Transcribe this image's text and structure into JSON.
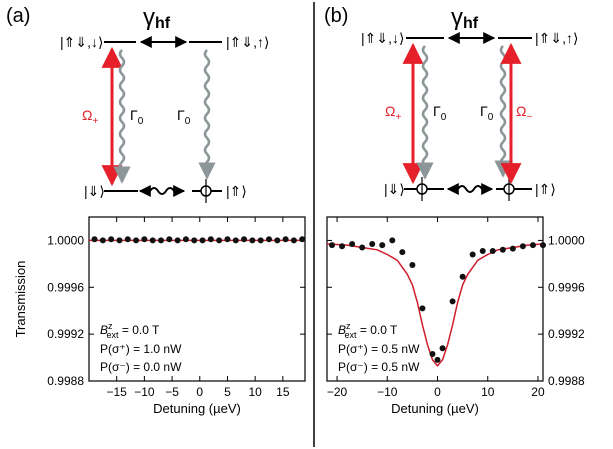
{
  "panels": [
    {
      "label": "(a)",
      "coupling": "γ",
      "coupling_sub": "hf",
      "states": {
        "excited_left": "|⇑⇓,↓⟩",
        "excited_right": "|⇑⇓,↑⟩",
        "ground_left": "|⇓⟩",
        "ground_right": "|⇑⟩"
      },
      "rabi": {
        "symbol": "Ω",
        "sub": "+"
      },
      "decay_left": {
        "symbol": "Γ",
        "sub": "0"
      },
      "decay_right": {
        "symbol": "Γ",
        "sub": "0"
      },
      "annotations": [
        {
          "main": "B",
          "sup": "z",
          "sub": "ext",
          "rest": " = 0.0 T"
        },
        {
          "text": "P(σ⁺) = 1.0 nW"
        },
        {
          "text": "P(σ⁻) = 0.0 nW"
        }
      ]
    },
    {
      "label": "(b)",
      "coupling": "γ",
      "coupling_sub": "hf",
      "states": {
        "excited_left": "|⇑⇓,↓⟩",
        "excited_right": "|⇑⇓,↑⟩",
        "ground_left": "|⇓⟩",
        "ground_right": "|⇑⟩"
      },
      "rabi_plus": {
        "symbol": "Ω",
        "sub": "+"
      },
      "rabi_minus": {
        "symbol": "Ω",
        "sub": "−"
      },
      "decay_left": {
        "symbol": "Γ",
        "sub": "0"
      },
      "decay_right": {
        "symbol": "Γ",
        "sub": "0"
      },
      "annotations": [
        {
          "main": "B",
          "sup": "z",
          "sub": "ext",
          "rest": " = 0.0 T"
        },
        {
          "text": "P(σ⁺) = 0.5 nW"
        },
        {
          "text": "P(σ⁻) = 0.5 nW"
        }
      ]
    }
  ],
  "colors": {
    "laser": "#e5202a",
    "decay": "#8c9699",
    "fit": "#d01c2c",
    "points": "#111111"
  },
  "chart_data": [
    {
      "type": "scatter",
      "xlabel": "Detuning (µeV)",
      "ylabel": "Transmission",
      "xlim": [
        -20,
        19
      ],
      "ylim": [
        0.9988,
        1.0002
      ],
      "x_ticks": [
        -15,
        -10,
        -5,
        0,
        5,
        10,
        15
      ],
      "x_tick_labels": [
        "−15",
        "−10",
        "−5",
        "0",
        "5",
        "10",
        "15"
      ],
      "y_ticks": [
        0.9988,
        0.9992,
        0.9996,
        1.0
      ],
      "y_tick_labels": [
        "0.9988",
        "0.9992",
        "0.9996",
        "1.0000"
      ],
      "y_axis_side": "left",
      "series": [
        {
          "kind": "points",
          "x": [
            -19,
            -17.5,
            -16,
            -14.5,
            -13,
            -11.5,
            -10,
            -8.5,
            -7,
            -5.5,
            -4,
            -2.5,
            -1,
            0.5,
            2,
            3.5,
            5,
            6.5,
            8,
            9.5,
            11,
            12.5,
            14,
            15.5,
            17,
            18.5
          ],
          "y": [
            1.00001,
            1.0,
            1.00001,
            1.0,
            1.00001,
            1.0,
            1.00001,
            1.0,
            1.0,
            1.00001,
            1.0,
            1.00001,
            1.0,
            1.0,
            1.00001,
            1.0,
            1.00001,
            1.0,
            1.00001,
            1.0,
            1.0,
            1.00001,
            1.0,
            1.00001,
            1.0,
            1.00001
          ]
        },
        {
          "kind": "fit",
          "x": [
            -20,
            19
          ],
          "y": [
            1.0,
            1.0
          ]
        }
      ]
    },
    {
      "type": "scatter",
      "xlabel": "Detuning (µeV)",
      "ylabel": "",
      "xlim": [
        -22,
        21
      ],
      "ylim": [
        0.9988,
        1.0002
      ],
      "x_ticks": [
        -20,
        -10,
        0,
        10,
        20
      ],
      "x_tick_labels": [
        "−20",
        "−10",
        "0",
        "10",
        "20"
      ],
      "y_ticks": [
        0.9988,
        0.9992,
        0.9996,
        1.0
      ],
      "y_tick_labels": [
        "0.9988",
        "0.9992",
        "0.9996",
        "1.0000"
      ],
      "y_axis_side": "right",
      "series": [
        {
          "kind": "points",
          "x": [
            -21,
            -19,
            -17,
            -15,
            -13,
            -11,
            -9,
            -7,
            -5,
            -3,
            -1,
            0,
            1,
            3,
            5,
            7,
            9,
            11,
            13,
            15,
            17,
            19,
            21
          ],
          "y": [
            0.99996,
            0.99995,
            0.99997,
            0.99994,
            0.99997,
            0.99996,
            1.0,
            0.9999,
            0.99979,
            0.99942,
            0.99903,
            0.99898,
            0.99908,
            0.99948,
            0.99969,
            0.99988,
            0.99991,
            0.99991,
            0.99992,
            0.99993,
            0.99995,
            0.99996,
            0.99996
          ]
        },
        {
          "kind": "fit",
          "x": [
            -22,
            -18,
            -15,
            -12,
            -10,
            -8,
            -6,
            -5,
            -4,
            -3,
            -2,
            -1,
            0,
            1,
            2,
            3,
            4,
            5,
            6,
            8,
            10,
            12,
            15,
            18,
            21
          ],
          "y": [
            0.99997,
            0.99996,
            0.99994,
            0.99992,
            0.99988,
            0.99983,
            0.99971,
            0.99962,
            0.99947,
            0.99928,
            0.99911,
            0.99898,
            0.99893,
            0.99898,
            0.99911,
            0.99928,
            0.99947,
            0.99962,
            0.99971,
            0.99983,
            0.99988,
            0.99992,
            0.99994,
            0.99996,
            0.99997
          ]
        }
      ]
    }
  ]
}
